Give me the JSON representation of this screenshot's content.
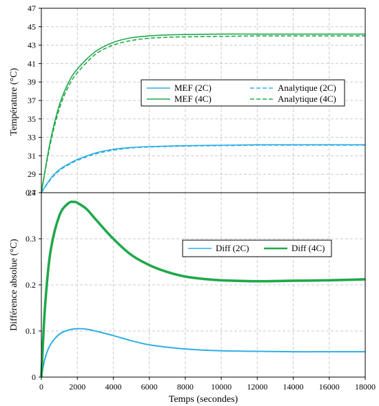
{
  "colors": {
    "blue": "#2eaee6",
    "green": "#20a84a"
  },
  "chart_data": [
    {
      "type": "line",
      "ylabel": "Température (°C)",
      "xlim": [
        0,
        18000
      ],
      "ylim": [
        27,
        47
      ],
      "yticks": [
        27,
        29,
        31,
        33,
        35,
        37,
        39,
        41,
        43,
        45,
        47
      ],
      "grid": true,
      "legend": "center-right",
      "series": [
        {
          "name": "MEF (2C)",
          "color": "#2eaee6",
          "dash": false,
          "x": [
            0,
            500,
            1000,
            1500,
            2000,
            3000,
            4000,
            5000,
            6000,
            8000,
            10000,
            12000,
            14000,
            16000,
            18000
          ],
          "y": [
            27.0,
            28.5,
            29.5,
            30.1,
            30.6,
            31.3,
            31.7,
            31.9,
            32.0,
            32.1,
            32.15,
            32.2,
            32.2,
            32.2,
            32.2
          ]
        },
        {
          "name": "Analytique (2C)",
          "color": "#2eaee6",
          "dash": true,
          "x": [
            0,
            500,
            1000,
            1500,
            2000,
            3000,
            4000,
            5000,
            6000,
            8000,
            10000,
            12000,
            14000,
            16000,
            18000
          ],
          "y": [
            27.0,
            28.4,
            29.4,
            30.0,
            30.5,
            31.2,
            31.6,
            31.85,
            31.95,
            32.05,
            32.1,
            32.15,
            32.15,
            32.15,
            32.15
          ]
        },
        {
          "name": "MEF (4C)",
          "color": "#20a84a",
          "dash": false,
          "x": [
            0,
            500,
            1000,
            1500,
            2000,
            3000,
            4000,
            5000,
            6000,
            7000,
            8000,
            10000,
            12000,
            14000,
            16000,
            18000
          ],
          "y": [
            27.0,
            32.6,
            36.5,
            38.9,
            40.4,
            42.3,
            43.3,
            43.8,
            44.0,
            44.1,
            44.15,
            44.2,
            44.2,
            44.2,
            44.2,
            44.2
          ]
        },
        {
          "name": "Analytique (4C)",
          "color": "#20a84a",
          "dash": true,
          "x": [
            0,
            500,
            1000,
            1500,
            2000,
            3000,
            4000,
            5000,
            6000,
            7000,
            8000,
            10000,
            12000,
            14000,
            16000,
            18000
          ],
          "y": [
            27.0,
            32.3,
            36.1,
            38.5,
            40.0,
            42.0,
            43.0,
            43.5,
            43.75,
            43.85,
            43.9,
            43.95,
            44.0,
            44.0,
            44.0,
            44.0
          ]
        }
      ]
    },
    {
      "type": "line",
      "xlabel": "Temps (secondes)",
      "ylabel": "Différence absolue (°C)",
      "xlim": [
        0,
        18000
      ],
      "ylim": [
        0,
        0.4
      ],
      "xticks": [
        0,
        2000,
        4000,
        6000,
        8000,
        10000,
        12000,
        14000,
        16000,
        18000
      ],
      "yticks": [
        0,
        0.1,
        0.2,
        0.3,
        0.4
      ],
      "grid": true,
      "legend": "center-right",
      "series": [
        {
          "name": "Diff (2C)",
          "color": "#2eaee6",
          "dash": false,
          "x": [
            0,
            200,
            500,
            1000,
            1500,
            2000,
            2500,
            3000,
            4000,
            5000,
            6000,
            8000,
            10000,
            12000,
            14000,
            16000,
            18000
          ],
          "y": [
            0.0,
            0.04,
            0.07,
            0.093,
            0.102,
            0.105,
            0.104,
            0.1,
            0.09,
            0.079,
            0.07,
            0.061,
            0.057,
            0.056,
            0.055,
            0.055,
            0.055
          ]
        },
        {
          "name": "Diff (4C)",
          "color": "#20a84a",
          "dash": false,
          "x": [
            0,
            200,
            500,
            1000,
            1500,
            1800,
            2000,
            2500,
            3000,
            4000,
            5000,
            6000,
            7000,
            8000,
            9000,
            10000,
            12000,
            14000,
            16000,
            18000
          ],
          "y": [
            0.0,
            0.15,
            0.27,
            0.35,
            0.377,
            0.38,
            0.378,
            0.365,
            0.343,
            0.3,
            0.265,
            0.243,
            0.228,
            0.218,
            0.213,
            0.21,
            0.208,
            0.209,
            0.21,
            0.212
          ]
        }
      ]
    }
  ]
}
